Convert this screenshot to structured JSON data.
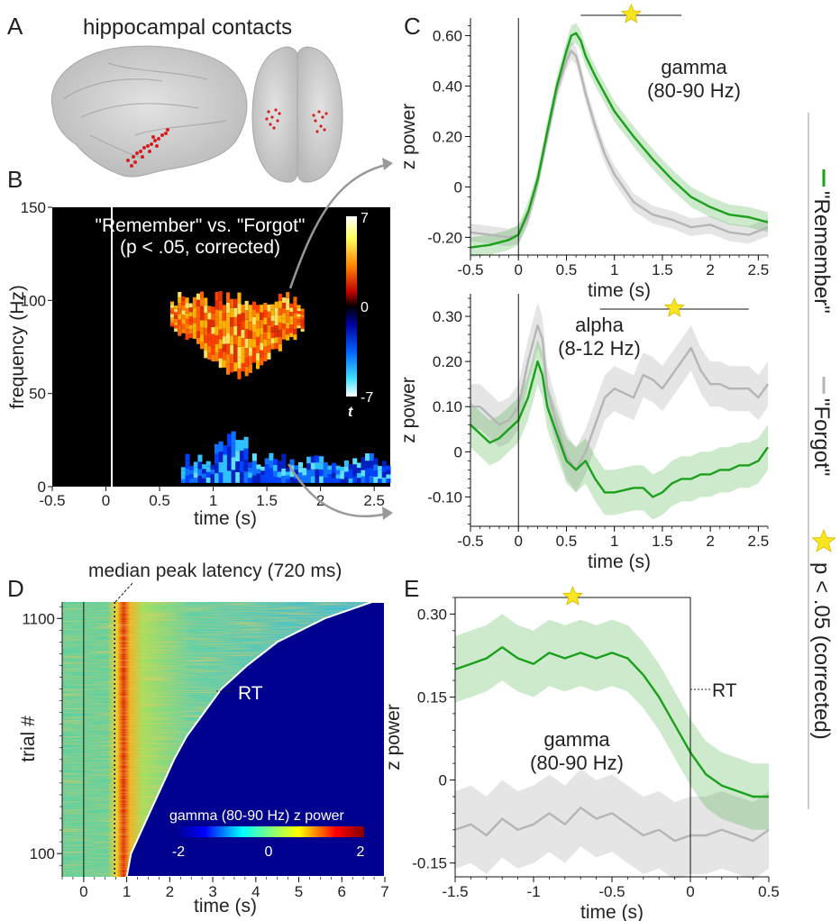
{
  "panel_labels": {
    "a": "A",
    "b": "B",
    "c": "C",
    "d": "D",
    "e": "E"
  },
  "panel_a": {
    "title": "hippocampal contacts"
  },
  "legend": {
    "remember": "\"Remember\"",
    "forgot": "\"Forgot\"",
    "significance": "p < .05 (corrected)",
    "colors": {
      "remember": "#1aa01a",
      "forgot": "#b5b5b5",
      "star": "#f7e51e"
    }
  },
  "chart_data": [
    {
      "id": "B",
      "type": "heatmap",
      "title": "\"Remember\" vs. \"Forgot\"",
      "subtitle": "(p < .05, corrected)",
      "xlabel": "time (s)",
      "ylabel": "frequency (Hz)",
      "xlim": [
        -0.5,
        2.65
      ],
      "ylim": [
        0,
        150
      ],
      "xticks": [
        "-0.5",
        "0",
        "0.5",
        "1",
        "1.5",
        "2",
        "2.5"
      ],
      "yticks": [
        "0",
        "50",
        "100",
        "150"
      ],
      "colorbar": {
        "label": "t",
        "ticks": [
          "7",
          "0",
          "-7"
        ],
        "range": [
          -7,
          7
        ]
      },
      "clusters": [
        {
          "sign": "positive",
          "time": [
            0.6,
            1.85
          ],
          "freq": [
            55,
            105
          ],
          "peak_t": 7
        },
        {
          "sign": "negative",
          "time": [
            0.7,
            2.65
          ],
          "freq": [
            2,
            27
          ],
          "peak_t": -7
        }
      ]
    },
    {
      "id": "C-gamma",
      "type": "line",
      "annotation": "gamma",
      "annotation2": "(80-90 Hz)",
      "xlabel": "time (s)",
      "ylabel": "z power",
      "xlim": [
        -0.5,
        2.6
      ],
      "ylim": [
        -0.27,
        0.67
      ],
      "xticks": [
        -0.5,
        0,
        0.5,
        1,
        1.5,
        2,
        2.5
      ],
      "xtick_labels": [
        "-0.5",
        "0",
        "0.5",
        "1",
        "1.5",
        "2",
        "2.5"
      ],
      "yticks": [
        -0.2,
        0,
        0.2,
        0.4,
        0.6
      ],
      "ytick_labels": [
        "-0.20",
        "0",
        "0.20",
        "0.40",
        "0.60"
      ],
      "significance_bar": [
        0.65,
        1.7
      ],
      "x": [
        -0.5,
        -0.3,
        -0.1,
        0.0,
        0.1,
        0.2,
        0.3,
        0.4,
        0.5,
        0.55,
        0.6,
        0.65,
        0.7,
        0.8,
        0.9,
        1.0,
        1.2,
        1.4,
        1.6,
        1.8,
        2.0,
        2.2,
        2.4,
        2.6
      ],
      "series": [
        {
          "name": "\"Remember\"",
          "values": [
            -0.24,
            -0.23,
            -0.21,
            -0.19,
            -0.1,
            0.03,
            0.22,
            0.4,
            0.54,
            0.6,
            0.61,
            0.58,
            0.52,
            0.44,
            0.37,
            0.3,
            0.2,
            0.11,
            0.03,
            -0.04,
            -0.08,
            -0.11,
            -0.12,
            -0.14
          ],
          "band": 0.04
        },
        {
          "name": "\"Forgot\"",
          "values": [
            -0.18,
            -0.19,
            -0.2,
            -0.19,
            -0.12,
            0.02,
            0.2,
            0.38,
            0.5,
            0.54,
            0.52,
            0.45,
            0.37,
            0.24,
            0.13,
            0.05,
            -0.06,
            -0.11,
            -0.13,
            -0.16,
            -0.15,
            -0.18,
            -0.19,
            -0.16
          ],
          "band": 0.035
        }
      ]
    },
    {
      "id": "C-alpha",
      "type": "line",
      "annotation": "alpha",
      "annotation2": "(8-12 Hz)",
      "xlabel": "time (s)",
      "ylabel": "z power",
      "xlim": [
        -0.5,
        2.6
      ],
      "ylim": [
        -0.165,
        0.35
      ],
      "xticks": [
        -0.5,
        0,
        0.5,
        1,
        1.5,
        2,
        2.5
      ],
      "xtick_labels": [
        "-0.5",
        "0",
        "0.5",
        "1",
        "1.5",
        "2",
        "2.5"
      ],
      "yticks": [
        -0.1,
        0,
        0.1,
        0.2,
        0.3
      ],
      "ytick_labels": [
        "-0.10",
        "0",
        "0.10",
        "0.20",
        "0.30"
      ],
      "significance_bar": [
        0.85,
        2.4
      ],
      "x": [
        -0.5,
        -0.4,
        -0.3,
        -0.2,
        -0.1,
        0.0,
        0.1,
        0.2,
        0.25,
        0.3,
        0.4,
        0.5,
        0.6,
        0.7,
        0.8,
        0.9,
        1.0,
        1.2,
        1.3,
        1.4,
        1.5,
        1.6,
        1.7,
        1.8,
        1.9,
        2.0,
        2.1,
        2.2,
        2.3,
        2.4,
        2.5,
        2.6
      ],
      "series": [
        {
          "name": "\"Remember\"",
          "values": [
            0.06,
            0.04,
            0.02,
            0.03,
            0.05,
            0.07,
            0.12,
            0.2,
            0.17,
            0.1,
            0.04,
            -0.02,
            -0.04,
            -0.02,
            -0.06,
            -0.09,
            -0.09,
            -0.08,
            -0.08,
            -0.1,
            -0.09,
            -0.07,
            -0.06,
            -0.06,
            -0.05,
            -0.05,
            -0.04,
            -0.04,
            -0.03,
            -0.03,
            -0.02,
            0.01
          ],
          "band": 0.05
        },
        {
          "name": "\"Forgot\"",
          "values": [
            0.1,
            0.1,
            0.08,
            0.06,
            0.07,
            0.1,
            0.2,
            0.28,
            0.25,
            0.14,
            0.06,
            -0.01,
            -0.04,
            0.0,
            0.06,
            0.12,
            0.14,
            0.12,
            0.17,
            0.16,
            0.14,
            0.17,
            0.2,
            0.23,
            0.18,
            0.15,
            0.15,
            0.14,
            0.14,
            0.14,
            0.12,
            0.15
          ],
          "band": 0.05
        }
      ]
    },
    {
      "id": "D",
      "type": "heatmap",
      "annotation": "median peak latency (720 ms)",
      "rt_label": "RT",
      "colorbar_label": "gamma (80-90 Hz) z power",
      "colorbar_ticks": [
        "-2",
        "0",
        "2"
      ],
      "xlabel": "time (s)",
      "ylabel": "trial #",
      "xlim": [
        -0.5,
        7
      ],
      "ylim": [
        1,
        1170
      ],
      "xticks": [
        "0",
        "1",
        "2",
        "3",
        "4",
        "5",
        "6",
        "7"
      ],
      "yticks": [
        "100",
        "1100"
      ],
      "median_peak_latency_s": 0.72,
      "rt_curve": {
        "trial": [
          1,
          100,
          200,
          300,
          400,
          500,
          600,
          700,
          800,
          900,
          1000,
          1100,
          1170
        ],
        "rt_s": [
          1.0,
          1.1,
          1.35,
          1.6,
          1.85,
          2.1,
          2.4,
          2.8,
          3.2,
          3.8,
          4.5,
          5.6,
          6.7
        ]
      }
    },
    {
      "id": "E",
      "type": "line",
      "annotation": "gamma",
      "annotation2": "(80-90 Hz)",
      "rt_label": "RT",
      "xlabel": "time (s)",
      "ylabel": "z power",
      "xlim": [
        -1.5,
        0.5
      ],
      "ylim": [
        -0.175,
        0.33
      ],
      "xticks": [
        -1.5,
        -1,
        -0.5,
        0,
        0.5
      ],
      "xtick_labels": [
        "-1.5",
        "-1",
        "-0.5",
        "0",
        "0.5"
      ],
      "yticks": [
        -0.15,
        0,
        0.15,
        0.3
      ],
      "ytick_labels": [
        "-0.15",
        "0",
        "0.15",
        "0.30"
      ],
      "significance_bar": [
        -1.5,
        0.0
      ],
      "x": [
        -1.5,
        -1.4,
        -1.3,
        -1.2,
        -1.1,
        -1.0,
        -0.9,
        -0.8,
        -0.7,
        -0.6,
        -0.5,
        -0.4,
        -0.3,
        -0.2,
        -0.1,
        0.0,
        0.1,
        0.2,
        0.3,
        0.4,
        0.5
      ],
      "series": [
        {
          "name": "\"Remember\"",
          "values": [
            0.2,
            0.21,
            0.22,
            0.24,
            0.22,
            0.21,
            0.23,
            0.22,
            0.23,
            0.22,
            0.23,
            0.22,
            0.19,
            0.15,
            0.1,
            0.05,
            0.01,
            -0.01,
            -0.02,
            -0.03,
            -0.03
          ],
          "band": 0.06
        },
        {
          "name": "\"Forgot\"",
          "values": [
            -0.09,
            -0.08,
            -0.1,
            -0.07,
            -0.09,
            -0.08,
            -0.06,
            -0.08,
            -0.05,
            -0.07,
            -0.06,
            -0.08,
            -0.1,
            -0.09,
            -0.11,
            -0.1,
            -0.1,
            -0.09,
            -0.1,
            -0.11,
            -0.09
          ],
          "band": 0.07
        }
      ]
    }
  ]
}
